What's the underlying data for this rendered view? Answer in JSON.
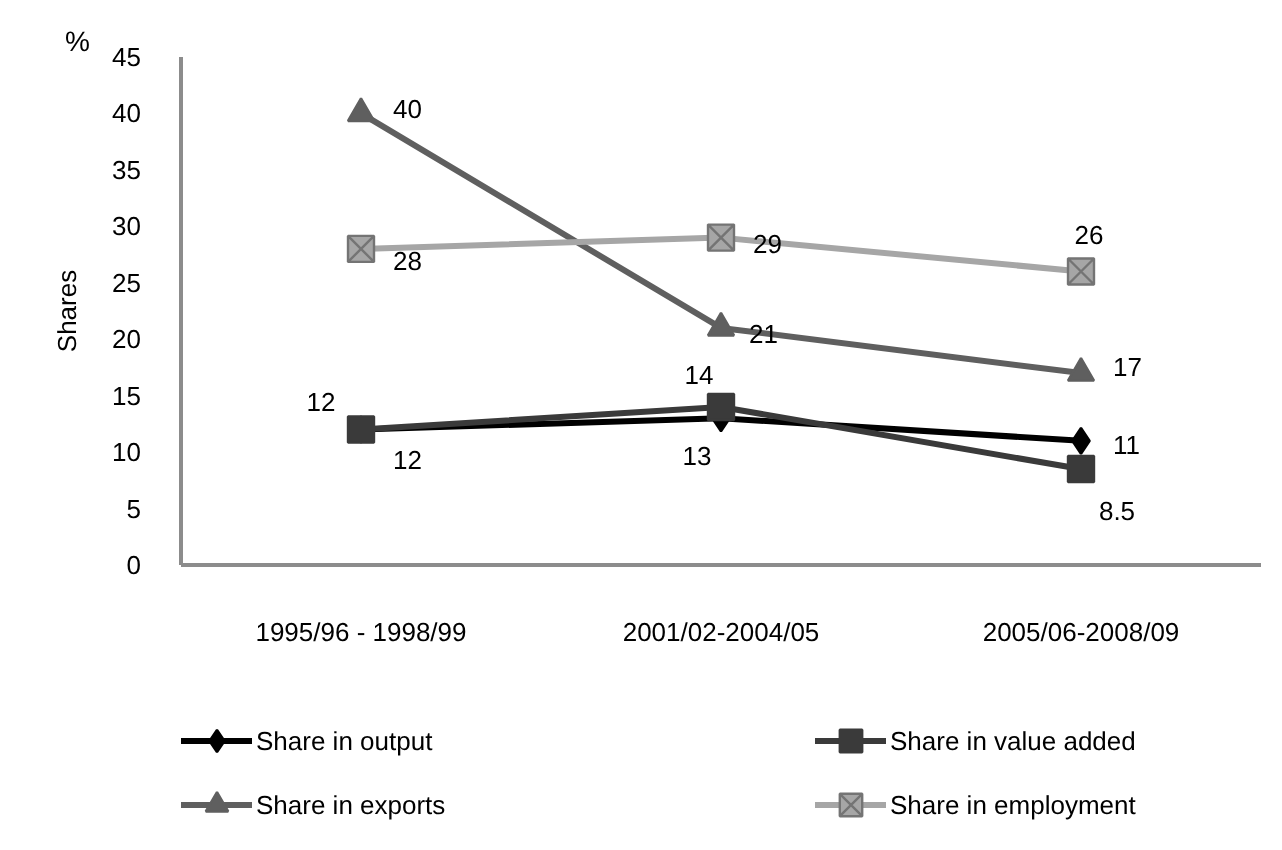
{
  "chart_data": {
    "type": "line",
    "ylabel": "Shares",
    "annotations": [
      "%"
    ],
    "categories": [
      "1995/96 - 1998/99",
      "2001/02-2004/05",
      "2005/06-2008/09"
    ],
    "series": [
      {
        "name": "Share in output",
        "color": "#000000",
        "marker": "diamond",
        "values": [
          12,
          13,
          11
        ]
      },
      {
        "name": "Share in value added",
        "color": "#3a3a3a",
        "marker": "square",
        "values": [
          12,
          14,
          8.5
        ]
      },
      {
        "name": "Share in exports",
        "color": "#5f5f5f",
        "marker": "triangle",
        "values": [
          40,
          21,
          17
        ]
      },
      {
        "name": "Share in employment",
        "color": "#a6a6a6",
        "marker": "cross",
        "values": [
          28,
          29,
          26
        ]
      }
    ],
    "ylim": [
      0,
      45
    ],
    "yticks": [
      0,
      5,
      10,
      15,
      20,
      25,
      30,
      35,
      40,
      45
    ],
    "grid": false,
    "legend": "bottom",
    "data_labels": true,
    "line_style": "solid"
  }
}
